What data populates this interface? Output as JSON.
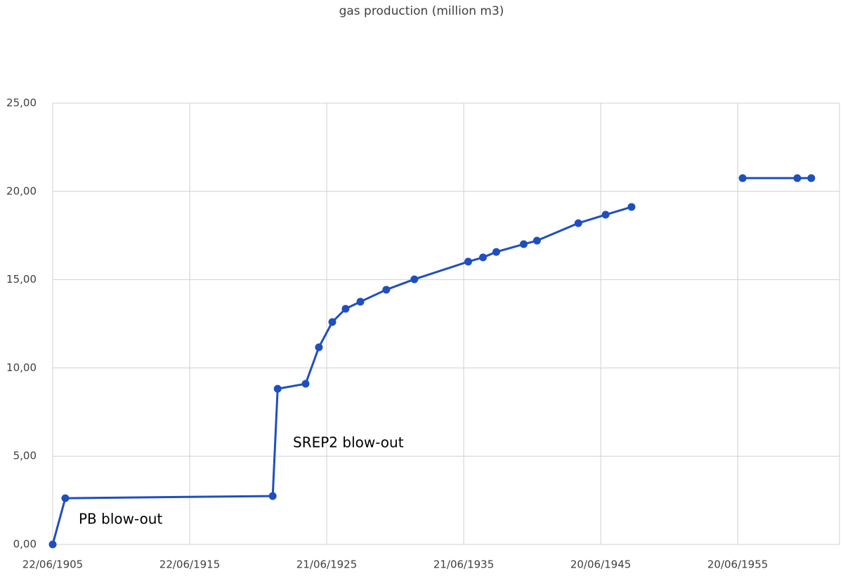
{
  "chart_data": {
    "type": "line",
    "title": "gas production (million m3)",
    "x": [
      1905.47,
      1906.39,
      1921.53,
      1921.89,
      1923.93,
      1924.9,
      1925.88,
      1926.85,
      1927.93,
      1929.82,
      1931.87,
      1935.8,
      1936.88,
      1937.85,
      1939.85,
      1940.82,
      1943.84,
      1945.83,
      1947.72,
      1951.5,
      1955.83,
      1959.82,
      1960.84
    ],
    "series": [
      {
        "name": "gas production",
        "color": "#1f4fbf",
        "values": [
          0,
          2.62,
          2.74,
          8.82,
          9.1,
          11.17,
          12.6,
          13.35,
          13.75,
          14.43,
          15.02,
          16.02,
          16.26,
          16.57,
          17.01,
          17.21,
          18.2,
          18.68,
          19.12,
          null,
          20.75,
          20.75,
          20.75
        ]
      }
    ],
    "xlim": [
      1905.47,
      1962.9
    ],
    "xticks": [
      {
        "value": 1905.47,
        "label": "22/06/1905"
      },
      {
        "value": 1915.47,
        "label": "22/06/1915"
      },
      {
        "value": 1925.47,
        "label": "21/06/1925"
      },
      {
        "value": 1935.47,
        "label": "21/06/1935"
      },
      {
        "value": 1945.47,
        "label": "20/06/1945"
      },
      {
        "value": 1955.47,
        "label": "20/06/1955"
      }
    ],
    "ylim": [
      0,
      25
    ],
    "yticks": [
      {
        "value": 0,
        "label": "0,00"
      },
      {
        "value": 5,
        "label": "5,00"
      },
      {
        "value": 10,
        "label": "10,00"
      },
      {
        "value": 15,
        "label": "15,00"
      },
      {
        "value": 20,
        "label": "20,00"
      },
      {
        "value": 25,
        "label": "25,00"
      }
    ],
    "grid": true,
    "annotations": [
      "PB blow-out",
      "SREP2 blow-out"
    ]
  }
}
